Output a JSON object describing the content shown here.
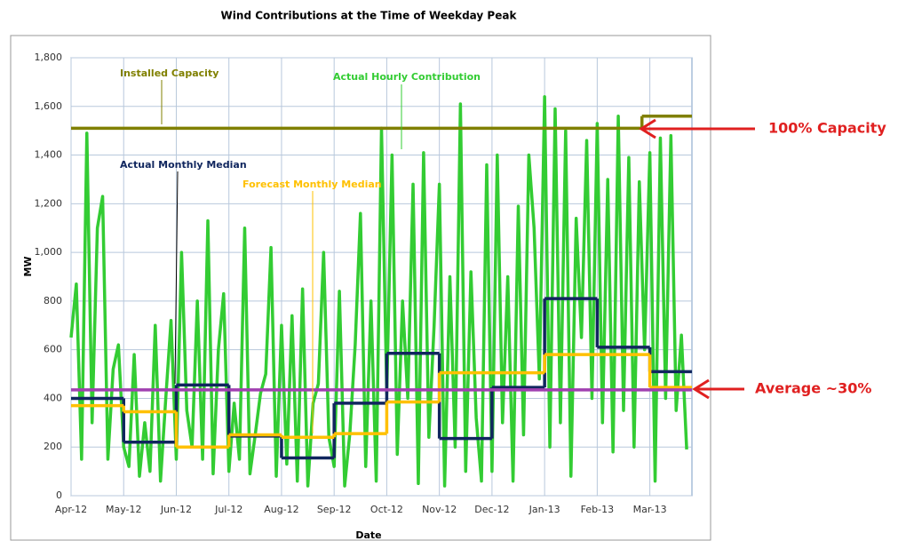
{
  "chart_data": {
    "type": "line",
    "title": "Wind Contributions at the Time of Weekday Peak",
    "xlabel": "Date",
    "ylabel": "MW",
    "xlim": [
      0,
      11.8
    ],
    "xticks": [
      {
        "value": 0,
        "label": "Apr-12"
      },
      {
        "value": 1,
        "label": "May-12"
      },
      {
        "value": 2,
        "label": "Jun-12"
      },
      {
        "value": 3,
        "label": "Jul-12"
      },
      {
        "value": 4,
        "label": "Aug-12"
      },
      {
        "value": 5,
        "label": "Sep-12"
      },
      {
        "value": 6,
        "label": "Oct-12"
      },
      {
        "value": 7,
        "label": "Nov-12"
      },
      {
        "value": 8,
        "label": "Dec-12"
      },
      {
        "value": 9,
        "label": "Jan-13"
      },
      {
        "value": 10,
        "label": "Feb-13"
      },
      {
        "value": 11,
        "label": "Mar-13"
      }
    ],
    "ylim": [
      0,
      1800
    ],
    "yticks": [
      0,
      200,
      400,
      600,
      800,
      {
        "value": 1000,
        "label": "1,000"
      },
      {
        "value": 1200,
        "label": "1,200"
      },
      {
        "value": 1400,
        "label": "1,400"
      },
      {
        "value": 1600,
        "label": "1,600"
      },
      {
        "value": 1800,
        "label": "1,800"
      }
    ],
    "grid": true,
    "annotations": [
      "100% Capacity"
    ],
    "series": [
      {
        "name": "Actual Hourly Contribution",
        "color": "#33cc33",
        "step": false,
        "x": [
          0,
          0.1,
          0.2,
          0.3,
          0.4,
          0.5,
          0.6,
          0.7,
          0.8,
          0.9,
          1,
          1.1,
          1.2,
          1.3,
          1.4,
          1.5,
          1.6,
          1.7,
          1.8,
          1.9,
          2,
          2.1,
          2.2,
          2.3,
          2.4,
          2.5,
          2.6,
          2.7,
          2.8,
          2.9,
          3,
          3.1,
          3.2,
          3.3,
          3.4,
          3.5,
          3.6,
          3.7,
          3.8,
          3.9,
          4,
          4.1,
          4.2,
          4.3,
          4.4,
          4.5,
          4.6,
          4.7,
          4.8,
          4.9,
          5,
          5.1,
          5.2,
          5.3,
          5.4,
          5.5,
          5.6,
          5.7,
          5.8,
          5.9,
          6,
          6.1,
          6.2,
          6.3,
          6.4,
          6.5,
          6.6,
          6.7,
          6.8,
          6.9,
          7,
          7.1,
          7.2,
          7.3,
          7.4,
          7.5,
          7.6,
          7.7,
          7.8,
          7.9,
          8,
          8.1,
          8.2,
          8.3,
          8.4,
          8.5,
          8.6,
          8.7,
          8.8,
          8.9,
          9,
          9.1,
          9.2,
          9.3,
          9.4,
          9.5,
          9.6,
          9.7,
          9.8,
          9.9,
          10,
          10.1,
          10.2,
          10.3,
          10.4,
          10.5,
          10.6,
          10.7,
          10.8,
          10.9,
          11,
          11.1,
          11.2,
          11.3,
          11.4,
          11.5,
          11.6,
          11.7
        ],
        "values": [
          650,
          870,
          150,
          1490,
          300,
          1100,
          1230,
          150,
          520,
          620,
          200,
          120,
          580,
          80,
          300,
          100,
          700,
          60,
          400,
          720,
          150,
          1000,
          350,
          200,
          800,
          150,
          1130,
          90,
          600,
          830,
          100,
          380,
          150,
          1100,
          90,
          250,
          420,
          500,
          1020,
          80,
          700,
          130,
          740,
          60,
          850,
          40,
          380,
          460,
          1000,
          240,
          120,
          840,
          40,
          260,
          620,
          1160,
          120,
          800,
          60,
          1510,
          420,
          1400,
          170,
          800,
          400,
          1280,
          50,
          1410,
          240,
          700,
          1280,
          40,
          900,
          200,
          1610,
          100,
          920,
          320,
          60,
          1360,
          100,
          1400,
          300,
          900,
          60,
          1190,
          250,
          1400,
          1100,
          480,
          1640,
          200,
          1590,
          300,
          1500,
          80,
          1140,
          650,
          1460,
          400,
          1530,
          300,
          1300,
          180,
          1560,
          350,
          1390,
          200,
          1290,
          600,
          1410,
          60,
          1470,
          400,
          1480,
          350,
          660,
          190
        ]
      },
      {
        "name": "Installed Capacity",
        "color": "#808000",
        "step": true,
        "x": [
          0,
          10.85
        ],
        "values": [
          1510,
          1560
        ]
      },
      {
        "name": "Actual Monthly Median",
        "color": "#10265e",
        "step": true,
        "x": [
          0,
          1,
          2,
          3,
          4,
          5,
          6,
          7,
          8,
          9,
          10,
          11
        ],
        "values": [
          400,
          220,
          455,
          245,
          155,
          380,
          585,
          235,
          445,
          810,
          610,
          510
        ]
      },
      {
        "name": "Forecast Monthly Median",
        "color": "#ffc000",
        "step": true,
        "x": [
          0,
          1,
          2,
          3,
          4,
          5,
          6,
          7,
          8,
          9,
          10,
          11
        ],
        "values": [
          370,
          345,
          200,
          250,
          240,
          255,
          385,
          505,
          505,
          580,
          580,
          445
        ]
      },
      {
        "name": "Average ~30%",
        "color": "#a040b0",
        "step": true,
        "x": [
          0
        ],
        "values": [
          435
        ]
      }
    ]
  }
}
